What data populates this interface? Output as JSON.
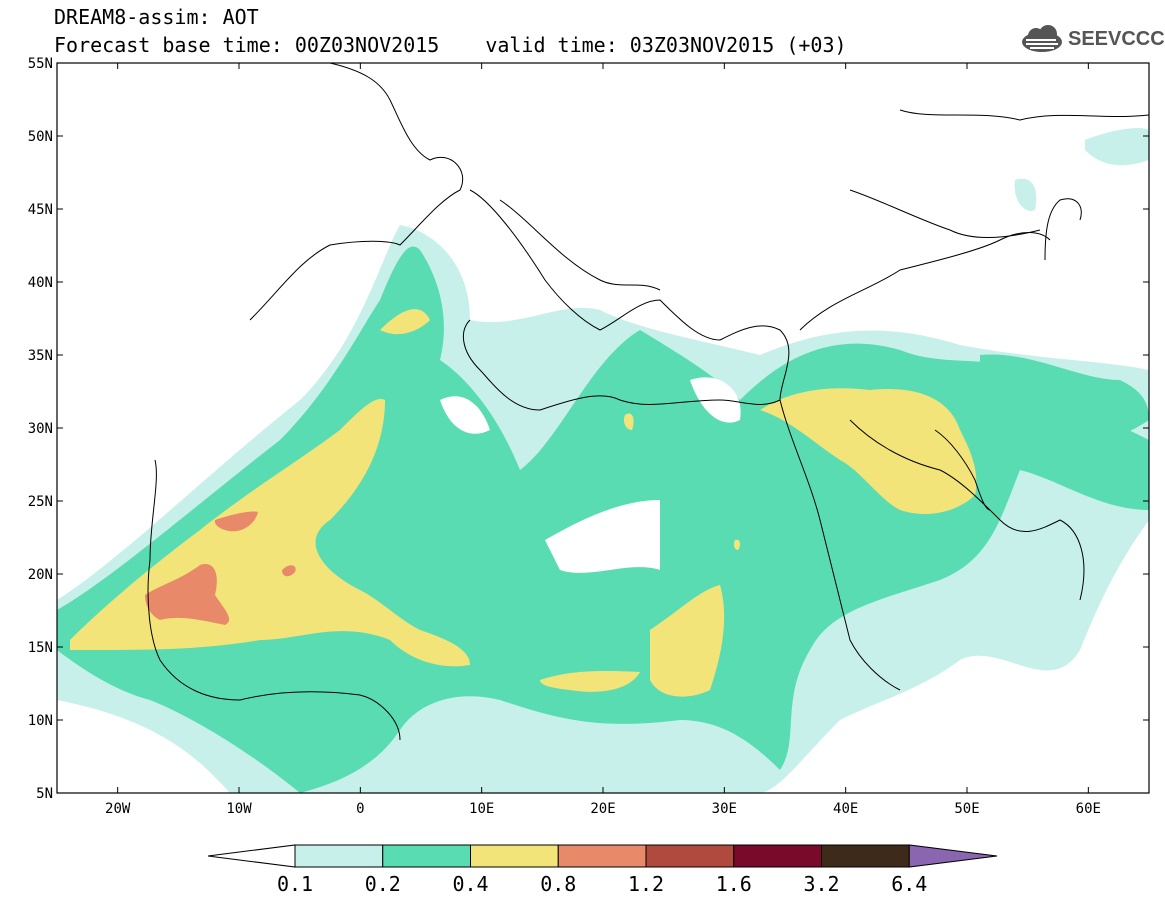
{
  "header": {
    "title_line1": "DREAM8-assim: AOT",
    "base_time": "Forecast base time: 00Z03NOV2015",
    "valid_time": "valid time: 03Z03NOV2015 (+03)",
    "logo_text": "SEEVCCC",
    "logo_icon": "cloud-icon"
  },
  "axes": {
    "lat_labels": [
      "55N",
      "50N",
      "45N",
      "40N",
      "35N",
      "30N",
      "25N",
      "20N",
      "15N",
      "10N",
      "5N"
    ],
    "lat_values": [
      55,
      50,
      45,
      40,
      35,
      30,
      25,
      20,
      15,
      10,
      5
    ],
    "lon_labels": [
      "20W",
      "10W",
      "0",
      "10E",
      "20E",
      "30E",
      "40E",
      "50E",
      "60E"
    ],
    "lon_values": [
      -20,
      -10,
      0,
      10,
      20,
      30,
      40,
      50,
      60
    ],
    "lon_range": [
      -25,
      65
    ],
    "lat_range": [
      5,
      55
    ]
  },
  "colorbar": {
    "labels": [
      "0.1",
      "0.2",
      "0.4",
      "0.8",
      "1.2",
      "1.6",
      "3.2",
      "6.4"
    ],
    "colors": [
      "#c8f0ea",
      "#5adcb3",
      "#f3e47a",
      "#e8896a",
      "#b04a3e",
      "#7a0a2a",
      "#3e2a1a",
      "#8a66b0"
    ]
  },
  "colors": {
    "c1": "#c8f0ea",
    "c2": "#5adcb3",
    "c3": "#f3e47a",
    "c4": "#e8896a"
  }
}
